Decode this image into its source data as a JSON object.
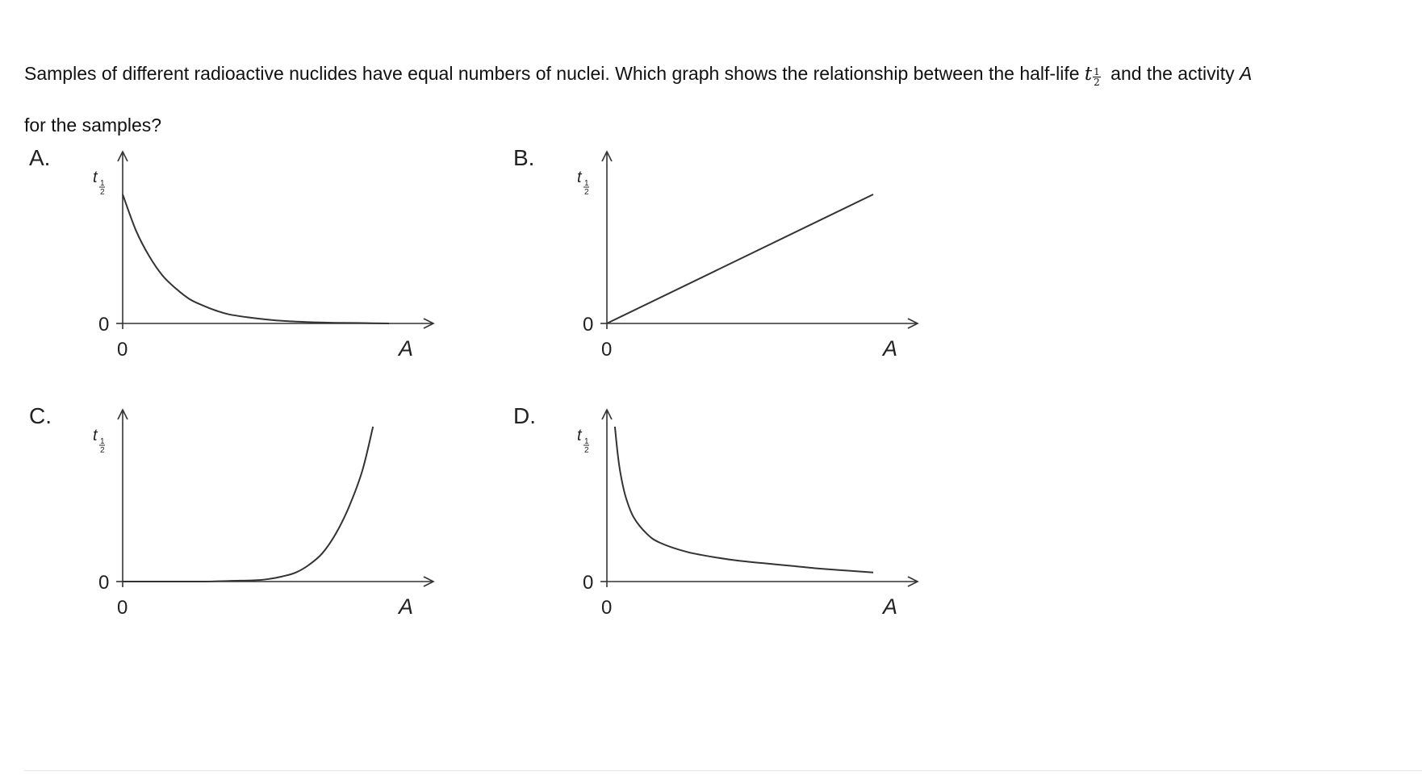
{
  "question": {
    "text_before": "Samples of different radioactive nuclides have equal numbers of nuclei. Which graph shows the relationship between the half-life",
    "t_symbol": "t",
    "t_sub_num": "1",
    "t_sub_den": "2",
    "text_middle": "and the activity",
    "activity_symbol": "A",
    "text_after": "for the samples?"
  },
  "options": [
    {
      "letter": "A.",
      "axis_x_label": "A",
      "axis_y_label": "t",
      "axis_y_sub_num": "1",
      "axis_y_sub_den": "2",
      "origin_x_label": "0",
      "origin_y_label": "0"
    },
    {
      "letter": "B.",
      "axis_x_label": "A",
      "axis_y_label": "t",
      "axis_y_sub_num": "1",
      "axis_y_sub_den": "2",
      "origin_x_label": "0",
      "origin_y_label": "0"
    },
    {
      "letter": "C.",
      "axis_x_label": "A",
      "axis_y_label": "t",
      "axis_y_sub_num": "1",
      "axis_y_sub_den": "2",
      "origin_x_label": "0",
      "origin_y_label": "0"
    },
    {
      "letter": "D.",
      "axis_x_label": "A",
      "axis_y_label": "t",
      "axis_y_sub_num": "1",
      "axis_y_sub_den": "2",
      "origin_x_label": "0",
      "origin_y_label": "0"
    }
  ],
  "chart_data": [
    {
      "type": "line",
      "curve": "exponential-decay",
      "x": [
        0,
        0.05,
        0.1,
        0.15,
        0.2,
        0.25,
        0.3,
        0.35,
        0.4,
        0.5,
        0.6,
        0.7,
        0.8,
        0.9,
        1.0
      ],
      "y": [
        1.0,
        0.72,
        0.52,
        0.37,
        0.27,
        0.19,
        0.14,
        0.1,
        0.07,
        0.04,
        0.02,
        0.01,
        0.005,
        0.003,
        0.0
      ],
      "xlim": [
        0,
        1.1
      ],
      "ylim": [
        0,
        1.3
      ],
      "color": "#333333"
    },
    {
      "type": "line",
      "curve": "linear",
      "x": [
        0,
        1.0
      ],
      "y": [
        0,
        1.0
      ],
      "xlim": [
        0,
        1.1
      ],
      "ylim": [
        0,
        1.1
      ],
      "color": "#333333"
    },
    {
      "type": "line",
      "curve": "exponential-growth",
      "x": [
        0,
        0.1,
        0.2,
        0.3,
        0.4,
        0.5,
        0.55,
        0.6,
        0.65,
        0.7,
        0.75,
        0.8,
        0.85,
        0.9,
        0.94
      ],
      "y": [
        0.0,
        0.0,
        0.0,
        0.0,
        0.005,
        0.01,
        0.02,
        0.04,
        0.07,
        0.13,
        0.22,
        0.37,
        0.58,
        0.86,
        1.2
      ],
      "xlim": [
        0,
        1.1
      ],
      "ylim": [
        0,
        1.3
      ],
      "color": "#333333"
    },
    {
      "type": "line",
      "curve": "inverse",
      "x": [
        0.03,
        0.04,
        0.05,
        0.07,
        0.1,
        0.15,
        0.2,
        0.3,
        0.4,
        0.5,
        0.6,
        0.7,
        0.8,
        0.9,
        1.0
      ],
      "y": [
        1.2,
        1.0,
        0.85,
        0.66,
        0.5,
        0.37,
        0.3,
        0.23,
        0.19,
        0.16,
        0.14,
        0.12,
        0.1,
        0.085,
        0.07
      ],
      "xlim": [
        0,
        1.1
      ],
      "ylim": [
        0,
        1.3
      ],
      "color": "#333333"
    }
  ]
}
